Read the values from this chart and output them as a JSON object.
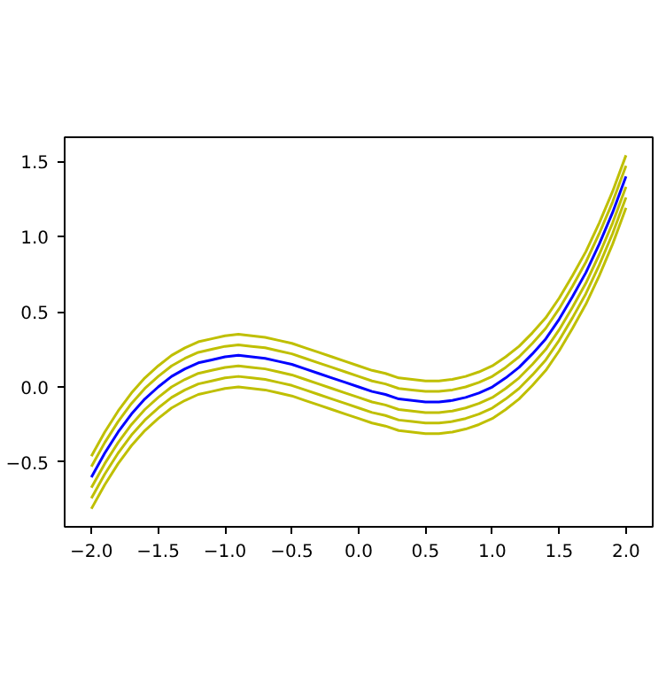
{
  "chart_data": {
    "type": "line",
    "line_style": "solid",
    "grid": false,
    "x": [
      -2.0,
      -1.9,
      -1.8,
      -1.7,
      -1.6,
      -1.5,
      -1.4,
      -1.3,
      -1.2,
      -1.1,
      -1.0,
      -0.9,
      -0.8,
      -0.7,
      -0.6,
      -0.5,
      -0.4,
      -0.3,
      -0.2,
      -0.1,
      0.0,
      0.1,
      0.2,
      0.3,
      0.4,
      0.5,
      0.6,
      0.7,
      0.8,
      0.9,
      1.0,
      1.1,
      1.2,
      1.3,
      1.4,
      1.5,
      1.6,
      1.7,
      1.8,
      1.9,
      2.0
    ],
    "xlim": [
      -2.2,
      2.2
    ],
    "xticks": [
      {
        "value": -2.0,
        "label": "−2.0"
      },
      {
        "value": -1.5,
        "label": "−1.5"
      },
      {
        "value": -1.0,
        "label": "−1.0"
      },
      {
        "value": -0.5,
        "label": "−0.5"
      },
      {
        "value": 0.0,
        "label": "0.0"
      },
      {
        "value": 0.5,
        "label": "0.5"
      },
      {
        "value": 1.0,
        "label": "1.0"
      },
      {
        "value": 1.5,
        "label": "1.5"
      },
      {
        "value": 2.0,
        "label": "2.0"
      }
    ],
    "ylim": [
      -0.93,
      1.66
    ],
    "yticks": [
      {
        "value": -0.5,
        "label": "−0.5"
      },
      {
        "value": 0.0,
        "label": "0.0"
      },
      {
        "value": 0.5,
        "label": "0.5"
      },
      {
        "value": 1.0,
        "label": "1.0"
      },
      {
        "value": 1.5,
        "label": "1.5"
      }
    ],
    "series": [
      {
        "color": "#bfbf00",
        "values": [
          -0.46,
          -0.3,
          -0.16,
          -0.04,
          0.06,
          0.14,
          0.21,
          0.26,
          0.3,
          0.32,
          0.34,
          0.35,
          0.34,
          0.33,
          0.31,
          0.29,
          0.26,
          0.23,
          0.2,
          0.17,
          0.14,
          0.11,
          0.09,
          0.06,
          0.05,
          0.04,
          0.04,
          0.05,
          0.07,
          0.1,
          0.14,
          0.2,
          0.27,
          0.36,
          0.46,
          0.59,
          0.74,
          0.9,
          1.09,
          1.3,
          1.54
        ]
      },
      {
        "color": "#bfbf00",
        "values": [
          -0.53,
          -0.37,
          -0.23,
          -0.11,
          -0.01,
          0.07,
          0.14,
          0.19,
          0.23,
          0.25,
          0.27,
          0.28,
          0.27,
          0.26,
          0.24,
          0.22,
          0.19,
          0.16,
          0.13,
          0.1,
          0.07,
          0.04,
          0.02,
          -0.01,
          -0.02,
          -0.03,
          -0.03,
          -0.02,
          0.0,
          0.03,
          0.07,
          0.13,
          0.2,
          0.29,
          0.39,
          0.52,
          0.67,
          0.83,
          1.02,
          1.23,
          1.47
        ]
      },
      {
        "color": "#bfbf00",
        "values": [
          -0.67,
          -0.51,
          -0.37,
          -0.25,
          -0.15,
          -0.07,
          0.0,
          0.05,
          0.09,
          0.11,
          0.13,
          0.14,
          0.13,
          0.12,
          0.1,
          0.08,
          0.05,
          0.02,
          -0.01,
          -0.04,
          -0.07,
          -0.1,
          -0.12,
          -0.15,
          -0.16,
          -0.17,
          -0.17,
          -0.16,
          -0.14,
          -0.11,
          -0.07,
          -0.01,
          0.06,
          0.15,
          0.25,
          0.38,
          0.53,
          0.69,
          0.88,
          1.09,
          1.33
        ]
      },
      {
        "color": "#bfbf00",
        "values": [
          -0.74,
          -0.58,
          -0.44,
          -0.32,
          -0.22,
          -0.14,
          -0.07,
          -0.02,
          0.02,
          0.04,
          0.06,
          0.07,
          0.06,
          0.05,
          0.03,
          0.01,
          -0.02,
          -0.05,
          -0.08,
          -0.11,
          -0.14,
          -0.17,
          -0.19,
          -0.22,
          -0.23,
          -0.24,
          -0.24,
          -0.23,
          -0.21,
          -0.18,
          -0.14,
          -0.08,
          -0.01,
          0.08,
          0.18,
          0.31,
          0.46,
          0.62,
          0.81,
          1.02,
          1.26
        ]
      },
      {
        "color": "#bfbf00",
        "values": [
          -0.81,
          -0.65,
          -0.51,
          -0.39,
          -0.29,
          -0.21,
          -0.14,
          -0.09,
          -0.05,
          -0.03,
          -0.01,
          0.0,
          -0.01,
          -0.02,
          -0.04,
          -0.06,
          -0.09,
          -0.12,
          -0.15,
          -0.18,
          -0.21,
          -0.24,
          -0.26,
          -0.29,
          -0.3,
          -0.31,
          -0.31,
          -0.3,
          -0.28,
          -0.25,
          -0.21,
          -0.15,
          -0.08,
          0.01,
          0.11,
          0.24,
          0.39,
          0.55,
          0.74,
          0.95,
          1.19
        ]
      },
      {
        "color": "#0000ff",
        "values": [
          -0.6,
          -0.44,
          -0.3,
          -0.18,
          -0.08,
          0.0,
          0.07,
          0.12,
          0.16,
          0.18,
          0.2,
          0.21,
          0.2,
          0.19,
          0.17,
          0.15,
          0.12,
          0.09,
          0.06,
          0.03,
          0.0,
          -0.03,
          -0.05,
          -0.08,
          -0.09,
          -0.1,
          -0.1,
          -0.09,
          -0.07,
          -0.04,
          0.0,
          0.06,
          0.13,
          0.22,
          0.32,
          0.45,
          0.6,
          0.76,
          0.95,
          1.16,
          1.4
        ]
      }
    ]
  }
}
